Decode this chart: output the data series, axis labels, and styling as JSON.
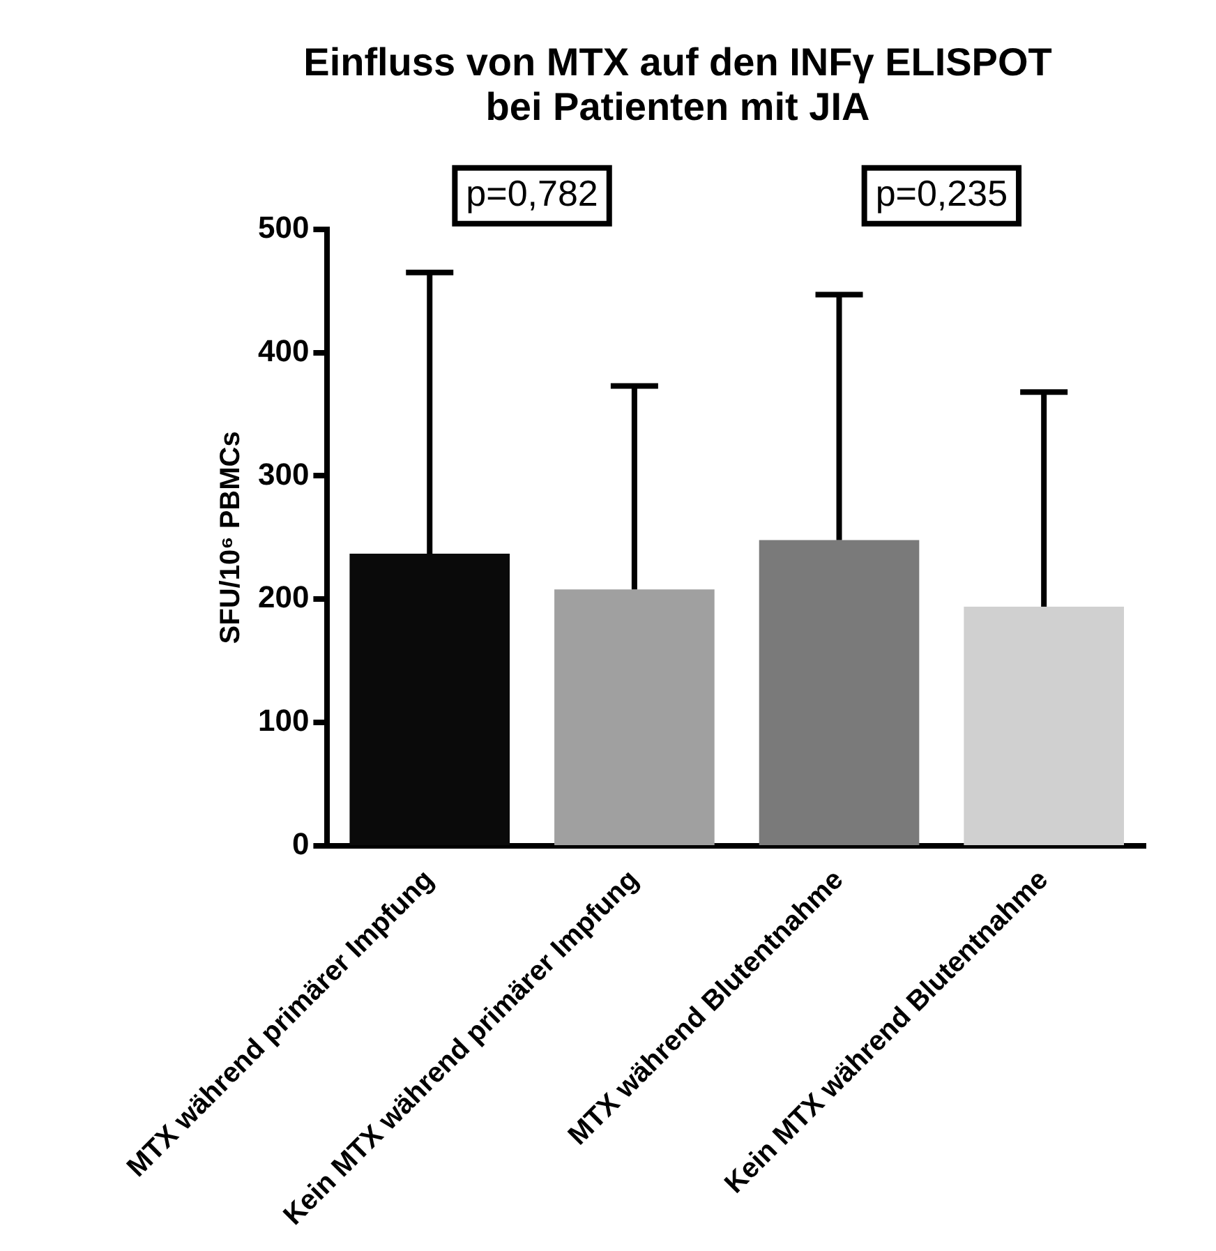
{
  "chart_data": {
    "type": "bar",
    "title": "Einfluss von MTX auf den INFγ ELISPOT\nbei Patienten mit JIA",
    "ylabel": "SFU/10⁶ PBMCs",
    "categories": [
      "MTX während primärer Impfung",
      "Kein MTX während primärer Impfung",
      "MTX während Blutentnahme",
      "Kein MTX während Blutentnahme"
    ],
    "values": [
      237,
      208,
      248,
      194
    ],
    "colors": [
      "#0a0a0a",
      "#a0a0a0",
      "#7a7a7a",
      "#d0d0d0"
    ],
    "errors": [
      [
        237,
        465
      ],
      [
        208,
        373
      ],
      [
        248,
        447
      ],
      [
        194,
        368
      ]
    ],
    "ylim": [
      0,
      500
    ],
    "yticks": [
      0,
      100,
      200,
      300,
      400,
      500
    ],
    "grid": false,
    "legend": false,
    "annotations": [
      "p=0,782",
      "p=0,235"
    ]
  }
}
